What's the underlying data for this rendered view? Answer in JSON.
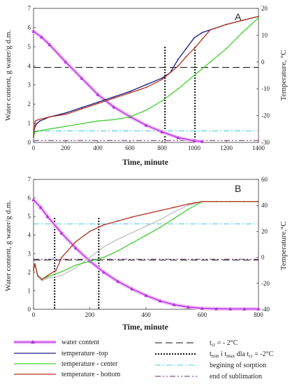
{
  "chart_data": [
    {
      "panel": "A",
      "type": "line",
      "xlabel": "Time, minute",
      "ylabel_left": "Water content, g water/g d.m.",
      "ylabel_right": "Temperature, °C",
      "xlim": [
        0,
        1400
      ],
      "ylim_left": [
        0,
        7
      ],
      "ylim_right": [
        -30,
        20
      ],
      "x_ticks": [
        0,
        200,
        400,
        600,
        800,
        1000,
        1200,
        1400
      ],
      "y_ticks_left": [
        0,
        1,
        2,
        3,
        4,
        5,
        6,
        7
      ],
      "y_ticks_right": [
        -30,
        -20,
        -10,
        0,
        10,
        20
      ],
      "series": [
        {
          "name": "water content",
          "axis": "left",
          "color": "#b030d8",
          "x": [
            0,
            50,
            100,
            200,
            300,
            400,
            500,
            600,
            700,
            800,
            900,
            1000,
            1050
          ],
          "y": [
            5.8,
            5.5,
            5.1,
            4.2,
            3.35,
            2.5,
            1.85,
            1.35,
            0.9,
            0.55,
            0.25,
            0.08,
            0.05
          ]
        },
        {
          "name": "temperature - top",
          "axis": "right",
          "color": "#1a1a80",
          "x": [
            0,
            5,
            10,
            20,
            40,
            100,
            200,
            300,
            400,
            500,
            600,
            700,
            800,
            850,
            900,
            950,
            1000,
            1050,
            1100,
            1200,
            1300,
            1400
          ],
          "y": [
            -28,
            -25,
            -24,
            -23,
            -22,
            -20.5,
            -19,
            -17,
            -15,
            -13,
            -11,
            -8.5,
            -6,
            -4,
            1,
            5,
            9,
            11,
            12,
            14,
            15.5,
            17
          ]
        },
        {
          "name": "temperature - center",
          "axis": "right",
          "color": "#40d030",
          "x": [
            0,
            10,
            20,
            50,
            100,
            200,
            300,
            400,
            500,
            600,
            700,
            800,
            900,
            1000,
            1100,
            1200,
            1300,
            1400
          ],
          "y": [
            -28,
            -26,
            -26,
            -25.5,
            -25,
            -24,
            -23,
            -22,
            -21.5,
            -20.5,
            -18,
            -14.5,
            -10,
            -5,
            0,
            5,
            11,
            16.5
          ]
        },
        {
          "name": "temperature - bottom",
          "axis": "right",
          "color": "#b03020",
          "x": [
            0,
            10,
            30,
            100,
            200,
            300,
            400,
            500,
            600,
            700,
            800,
            850,
            900,
            950,
            1000,
            1100,
            1200,
            1300,
            1400
          ],
          "y": [
            -28,
            -22,
            -21.5,
            -20.5,
            -19.5,
            -17.5,
            -15.5,
            -13.5,
            -11.5,
            -9.5,
            -6.5,
            -4,
            -1.5,
            2,
            5,
            12,
            14,
            15.5,
            17
          ]
        }
      ],
      "reference_lines": [
        {
          "name": "tcr = -2°C",
          "axis": "right",
          "y": -2,
          "style": "long-dash"
        },
        {
          "name": "tmin i tmax dla tcr = -2°C",
          "style": "dotted",
          "x": [
            818,
            1005
          ]
        },
        {
          "name": "begining of sorption",
          "axis": "left",
          "y": 0.6,
          "style": "dash-dot"
        },
        {
          "name": "end of sublimation",
          "axis": "left",
          "y": 0.1,
          "style": "dash-dot-dot"
        }
      ]
    },
    {
      "panel": "B",
      "type": "line",
      "xlabel": "Time, minute",
      "ylabel_left": "Water content, g water/g d.m.",
      "ylabel_right": "Temperature,°C",
      "xlim": [
        0,
        800
      ],
      "ylim_left": [
        0,
        7
      ],
      "ylim_right": [
        -40,
        60
      ],
      "x_ticks": [
        0,
        200,
        400,
        600,
        800
      ],
      "y_ticks_left": [
        0,
        1,
        2,
        3,
        4,
        5,
        6,
        7
      ],
      "y_ticks_right": [
        -40,
        -20,
        0,
        20,
        40,
        60
      ],
      "series": [
        {
          "name": "water content",
          "axis": "left",
          "color": "#b030d8",
          "x": [
            0,
            25,
            50,
            100,
            150,
            200,
            250,
            300,
            350,
            400,
            450,
            500,
            550,
            600,
            650,
            700,
            750,
            800
          ],
          "y": [
            5.9,
            5.5,
            5.0,
            4.1,
            3.3,
            2.6,
            2.0,
            1.5,
            1.1,
            0.75,
            0.45,
            0.25,
            0.12,
            0.05,
            0.03,
            0.02,
            0.02,
            0.02
          ]
        },
        {
          "name": "temperature - top",
          "axis": "right",
          "color": "#c0c0c0",
          "x": [
            0,
            5,
            15,
            30,
            50,
            100,
            150,
            200,
            250,
            300,
            350,
            400,
            450,
            500,
            550,
            600,
            650,
            700,
            750,
            800
          ],
          "y": [
            -10,
            -5,
            -15,
            -18,
            -16,
            -14,
            -8,
            0,
            8,
            14,
            19,
            24,
            29,
            35,
            40,
            43,
            43,
            43,
            43,
            43
          ]
        },
        {
          "name": "temperature - center",
          "axis": "right",
          "color": "#40d030",
          "x": [
            0,
            5,
            15,
            30,
            50,
            100,
            150,
            200,
            250,
            300,
            350,
            400,
            450,
            500,
            550,
            600,
            650,
            700,
            750,
            800
          ],
          "y": [
            -10,
            -5,
            -14,
            -17,
            -15,
            -11,
            -6,
            -3,
            0,
            5,
            11,
            17,
            23,
            30,
            37,
            43,
            43,
            43,
            43,
            43
          ]
        },
        {
          "name": "temperature - bottom",
          "axis": "right",
          "color": "#b03020",
          "x": [
            0,
            5,
            15,
            30,
            50,
            80,
            100,
            150,
            200,
            250,
            300,
            350,
            400,
            450,
            500,
            550,
            600,
            650,
            700,
            750,
            800
          ],
          "y": [
            -10,
            -5,
            -14,
            -17,
            -14,
            -10,
            0,
            12,
            20,
            25,
            28,
            31,
            33.5,
            36,
            38.5,
            41,
            43,
            43,
            43,
            43,
            43
          ]
        }
      ],
      "reference_lines": [
        {
          "name": "tcr = -2°C",
          "axis": "right",
          "y": -2,
          "style": "long-dash"
        },
        {
          "name": "tmin i tmax dla tcr = -2°C",
          "style": "dotted",
          "x": [
            75,
            232
          ]
        },
        {
          "name": "begining of sorption",
          "axis": "left",
          "y": 4.6,
          "style": "dash-dot"
        },
        {
          "name": "end of sublimation",
          "axis": "left",
          "y": 2.7,
          "style": "dash-dot-dot"
        }
      ]
    }
  ],
  "labels": {
    "a_letter": "A",
    "b_letter": "B",
    "xlabel_a": "Time, minute",
    "xlabel_b": "Time, minute",
    "ylabel_left_a": "Water content, g water/g d.m.",
    "ylabel_right_a": "Temperature, °C",
    "ylabel_left_b": "Water content, g water/g d.m.",
    "ylabel_right_b": "Temperature,°C"
  },
  "legend": {
    "water_content": "water content",
    "temp_top": "temperature -top",
    "temp_center": "temperature - center",
    "temp_bottom": "temperature - bottom",
    "tcr_prefix": "t",
    "tcr_sub": "cr",
    "tcr_suffix": " = - 2°C",
    "tmm_1": "t",
    "tmm_1_sub": "min",
    "tmm_2": " i t",
    "tmm_2_sub": "max",
    "tmm_3": " dla t",
    "tmm_3_sub": "cr",
    "tmm_4": " = -2°C",
    "sorption": "begining of sorption",
    "sublimation": "end of sublimation"
  },
  "colors": {
    "water": "#b030d8",
    "water_glow": "#f0b8f8",
    "top": "#1a1a80",
    "center": "#40d030",
    "bottom": "#b03020",
    "top_b": "#c0c0c0",
    "sorption": "#40c8e0",
    "sublimation": "#6a2a6a"
  }
}
